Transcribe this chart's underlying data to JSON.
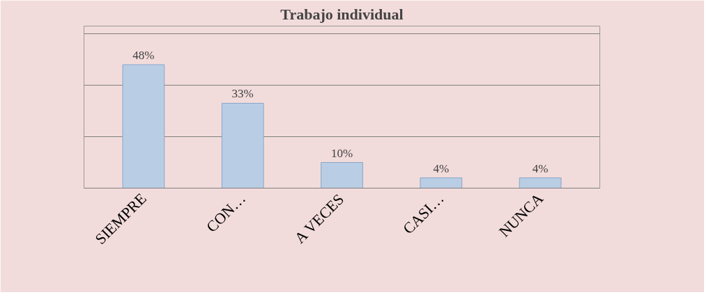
{
  "chart_data": {
    "type": "bar",
    "title": "Trabajo individual",
    "categories": [
      "SIEMPRE",
      "CON…",
      "A VECES",
      "CASI…",
      "NUNCA"
    ],
    "values": [
      48,
      33,
      10,
      4,
      4
    ],
    "value_labels": [
      "48%",
      "33%",
      "10%",
      "4%",
      "4%"
    ],
    "color": "#b9cde5",
    "ylim": [
      0,
      63
    ],
    "yticks": [
      {
        "value": 0,
        "label": null
      },
      {
        "value": 20,
        "label": null
      },
      {
        "value": 40,
        "label": null
      },
      {
        "value": 60,
        "label": null
      }
    ],
    "grid": "y",
    "tick_labels": "x"
  }
}
